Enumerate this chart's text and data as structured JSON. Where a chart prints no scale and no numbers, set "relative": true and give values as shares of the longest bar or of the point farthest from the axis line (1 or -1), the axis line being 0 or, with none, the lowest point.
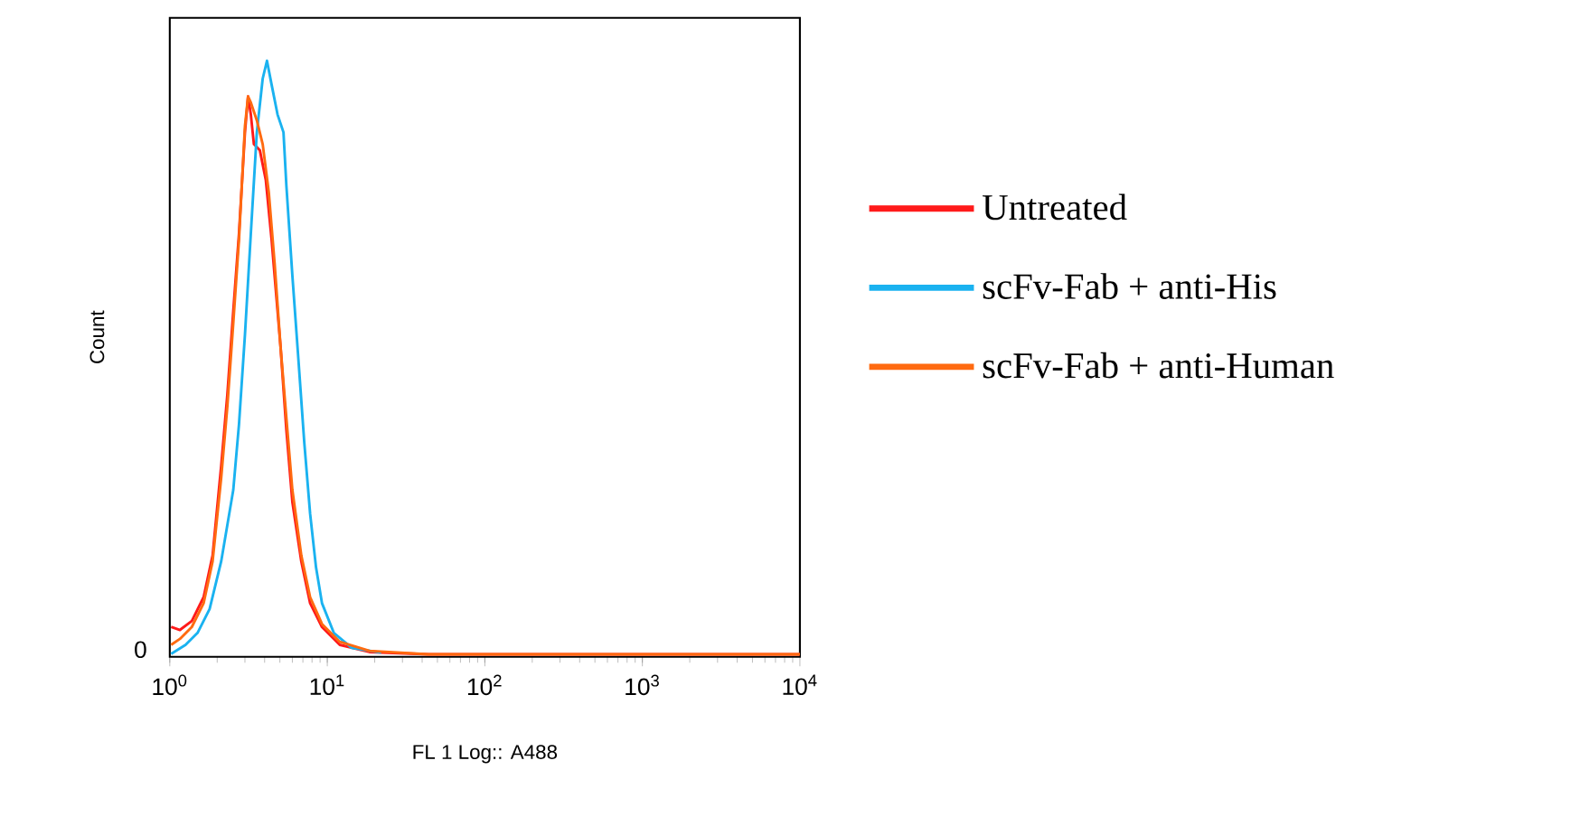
{
  "chart_data": {
    "type": "line",
    "xlabel": "FL 1 Log:: A488",
    "ylabel": "Count",
    "log": "x",
    "relative": true,
    "legend": "right",
    "annotations": [
      "0"
    ],
    "xlim": [
      1,
      10000
    ],
    "xticks": [
      {
        "value": 1,
        "label": "10$^{0}$"
      },
      {
        "value": 10,
        "label": "10$^{1}$"
      },
      {
        "value": 100,
        "label": "10$^{2}$"
      },
      {
        "value": 1000,
        "label": "10$^{3}$"
      },
      {
        "value": 10000,
        "label": "10$^{4}$"
      }
    ],
    "series": [
      {
        "name": "Untreated",
        "color": "#ff1a1a",
        "x": [
          1.02,
          1.16,
          1.38,
          1.64,
          1.87,
          2.12,
          2.32,
          2.53,
          2.75,
          3.0,
          3.14,
          3.27,
          3.42,
          3.73,
          4.07,
          4.43,
          5.05,
          5.5,
          6.0,
          6.84,
          7.78,
          9.25,
          12.0,
          18.5,
          43.9,
          10000
        ],
        "values": [
          0.05,
          0.045,
          0.06,
          0.1,
          0.17,
          0.32,
          0.44,
          0.58,
          0.71,
          0.88,
          0.94,
          0.91,
          0.86,
          0.85,
          0.8,
          0.7,
          0.52,
          0.38,
          0.26,
          0.16,
          0.09,
          0.05,
          0.02,
          0.008,
          0.004,
          0.004
        ]
      },
      {
        "name": "scFv-Fab + anti-His",
        "color": "#1ab2f0",
        "x": [
          1.02,
          1.26,
          1.5,
          1.79,
          2.12,
          2.53,
          2.75,
          3.0,
          3.27,
          3.57,
          3.89,
          4.14,
          4.43,
          4.83,
          5.27,
          5.5,
          6.0,
          6.55,
          7.14,
          7.78,
          8.48,
          9.25,
          11.0,
          14.3,
          22.0
        ],
        "values": [
          0.005,
          0.02,
          0.04,
          0.08,
          0.16,
          0.28,
          0.39,
          0.54,
          0.71,
          0.88,
          0.97,
          1.0,
          0.96,
          0.91,
          0.88,
          0.79,
          0.64,
          0.5,
          0.36,
          0.24,
          0.15,
          0.09,
          0.04,
          0.015,
          0.007
        ]
      },
      {
        "name": "scFv-Fab + anti-Human",
        "color": "#ff6a10",
        "x": [
          1.02,
          1.16,
          1.38,
          1.64,
          1.87,
          2.12,
          2.32,
          2.53,
          2.75,
          3.0,
          3.14,
          3.27,
          3.57,
          3.89,
          4.25,
          4.63,
          5.05,
          5.5,
          6.0,
          6.84,
          7.78,
          9.25,
          12.0,
          18.5,
          43.9,
          10000
        ],
        "values": [
          0.02,
          0.03,
          0.05,
          0.09,
          0.16,
          0.3,
          0.42,
          0.56,
          0.7,
          0.89,
          0.94,
          0.93,
          0.9,
          0.86,
          0.78,
          0.66,
          0.52,
          0.4,
          0.28,
          0.17,
          0.1,
          0.055,
          0.025,
          0.01,
          0.004,
          0.004
        ]
      }
    ]
  }
}
